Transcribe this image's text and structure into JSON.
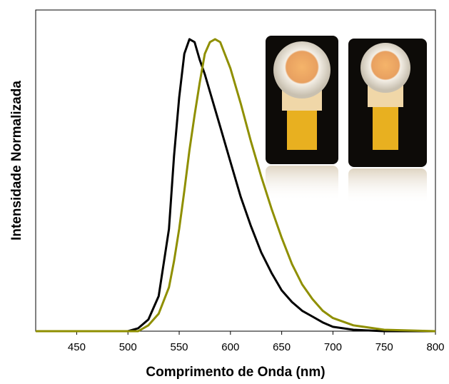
{
  "chart_data": {
    "type": "line",
    "xlabel": "Comprimento de Onda (nm)",
    "ylabel": "Intensidade Normalizada",
    "x": [
      410,
      500,
      510,
      520,
      530,
      540,
      545,
      550,
      555,
      560,
      565,
      570,
      575,
      580,
      585,
      590,
      600,
      610,
      620,
      630,
      640,
      650,
      660,
      670,
      680,
      690,
      700,
      720,
      750,
      800
    ],
    "series": [
      {
        "color": "#000000",
        "values": [
          0,
          0,
          0.01,
          0.04,
          0.12,
          0.35,
          0.6,
          0.8,
          0.95,
          1.0,
          0.99,
          0.93,
          0.88,
          0.82,
          0.76,
          0.7,
          0.58,
          0.46,
          0.36,
          0.27,
          0.2,
          0.14,
          0.1,
          0.07,
          0.05,
          0.03,
          0.015,
          0.005,
          0,
          0
        ]
      },
      {
        "color": "#8f8f00",
        "values": [
          0,
          0,
          0,
          0.02,
          0.06,
          0.15,
          0.24,
          0.35,
          0.48,
          0.62,
          0.74,
          0.85,
          0.95,
          0.99,
          1.0,
          0.99,
          0.9,
          0.78,
          0.65,
          0.53,
          0.42,
          0.32,
          0.23,
          0.16,
          0.11,
          0.07,
          0.045,
          0.02,
          0.005,
          0
        ]
      }
    ],
    "xlim": [
      410,
      800
    ],
    "ylim": [
      0,
      1.1
    ],
    "xticks": [
      450,
      500,
      550,
      600,
      650,
      700,
      750,
      800
    ]
  }
}
